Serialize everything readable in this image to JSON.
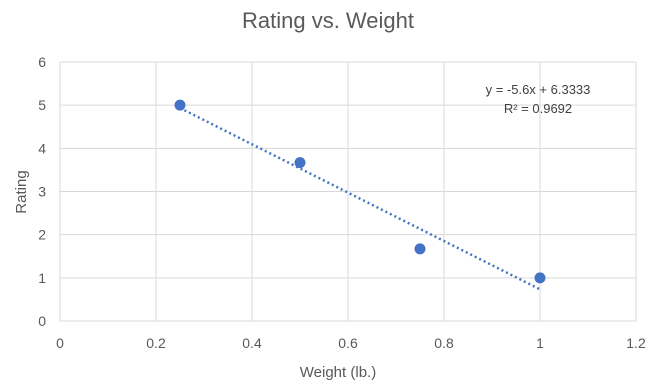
{
  "chart_data": {
    "type": "scatter",
    "title": "Rating vs. Weight",
    "xlabel": "Weight (lb.)",
    "ylabel": "Rating",
    "xlim": [
      0,
      1.2
    ],
    "ylim": [
      0,
      6
    ],
    "xticks": [
      "0",
      "0.2",
      "0.4",
      "0.6",
      "0.8",
      "1",
      "1.2"
    ],
    "yticks": [
      "0",
      "1",
      "2",
      "3",
      "4",
      "5",
      "6"
    ],
    "grid": true,
    "legend": "none",
    "points": [
      {
        "x": 0.25,
        "y": 5.0
      },
      {
        "x": 0.5,
        "y": 3.67
      },
      {
        "x": 0.75,
        "y": 1.67
      },
      {
        "x": 1.0,
        "y": 1.0
      }
    ],
    "trendline": {
      "type": "linear",
      "slope": -5.6,
      "intercept": 6.3333,
      "x_range": [
        0.25,
        1.0
      ],
      "equation": "y = -5.6x + 6.3333",
      "r_squared": "R² = 0.9692"
    },
    "colors": {
      "points": "#4472C4",
      "trendline": "#4472C4",
      "grid": "#D9D9D9",
      "text": "#595959"
    }
  }
}
